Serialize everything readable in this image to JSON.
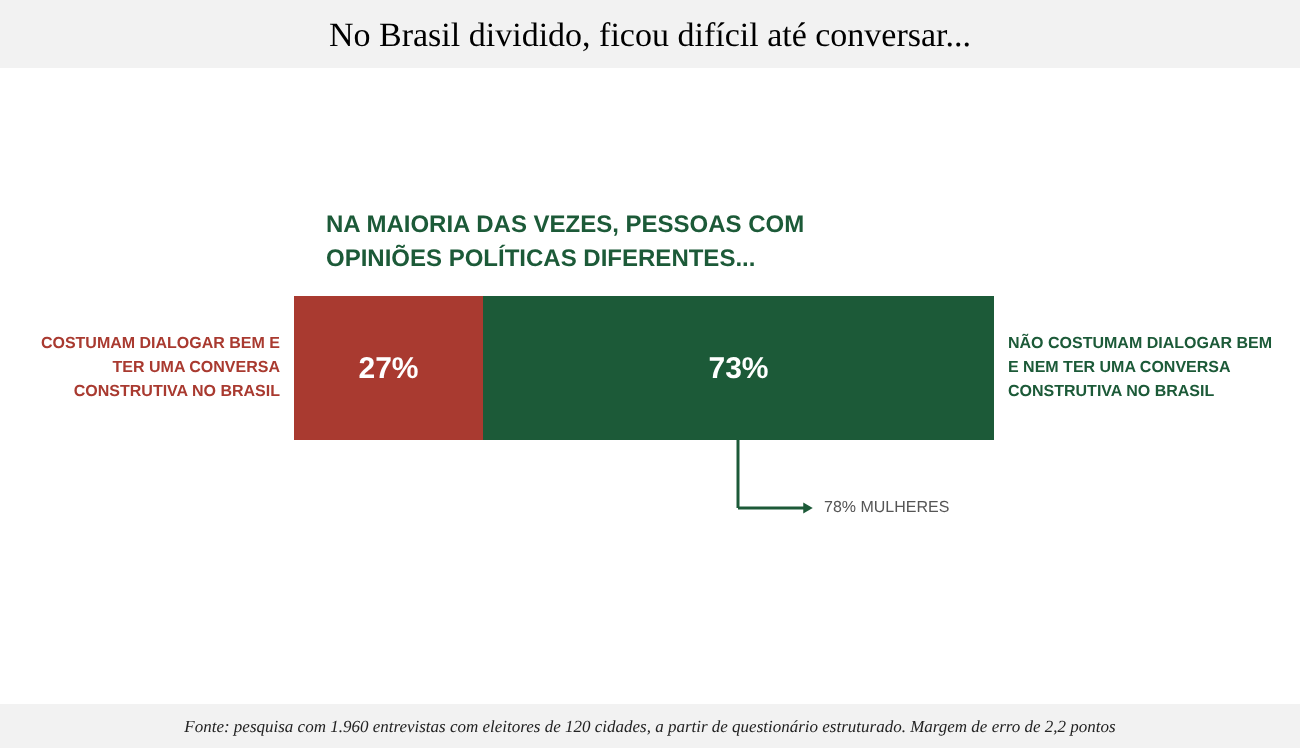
{
  "chart_data": {
    "type": "bar",
    "title": "No Brasil dividido, ficou difícil até conversar...",
    "subtitle": "NA MAIORIA DAS VEZES, PESSOAS COM OPINIÕES POLÍTICAS DIFERENTES...",
    "orientation": "horizontal",
    "stacked": true,
    "categories": [
      null
    ],
    "series": [
      {
        "name": "COSTUMAM DIALOGAR BEM E TER UMA CONVERSA CONSTRUTIVA NO BRASIL",
        "color": "#a93a30",
        "values": [
          27
        ],
        "value_labels": [
          "27%"
        ]
      },
      {
        "name": "NÃO COSTUMAM DIALOGAR BEM E NEM TER UMA CONVERSA CONSTRUTIVA NO BRASIL",
        "color": "#1c5a38",
        "values": [
          73
        ],
        "value_labels": [
          "73%"
        ]
      }
    ],
    "annotations": [
      "78% MULHERES",
      "Fonte: pesquisa com 1.960 entrevistas com eleitores de 120 cidades, a partir de questionário estruturado. Margem de erro de 2,2 pontos"
    ]
  }
}
